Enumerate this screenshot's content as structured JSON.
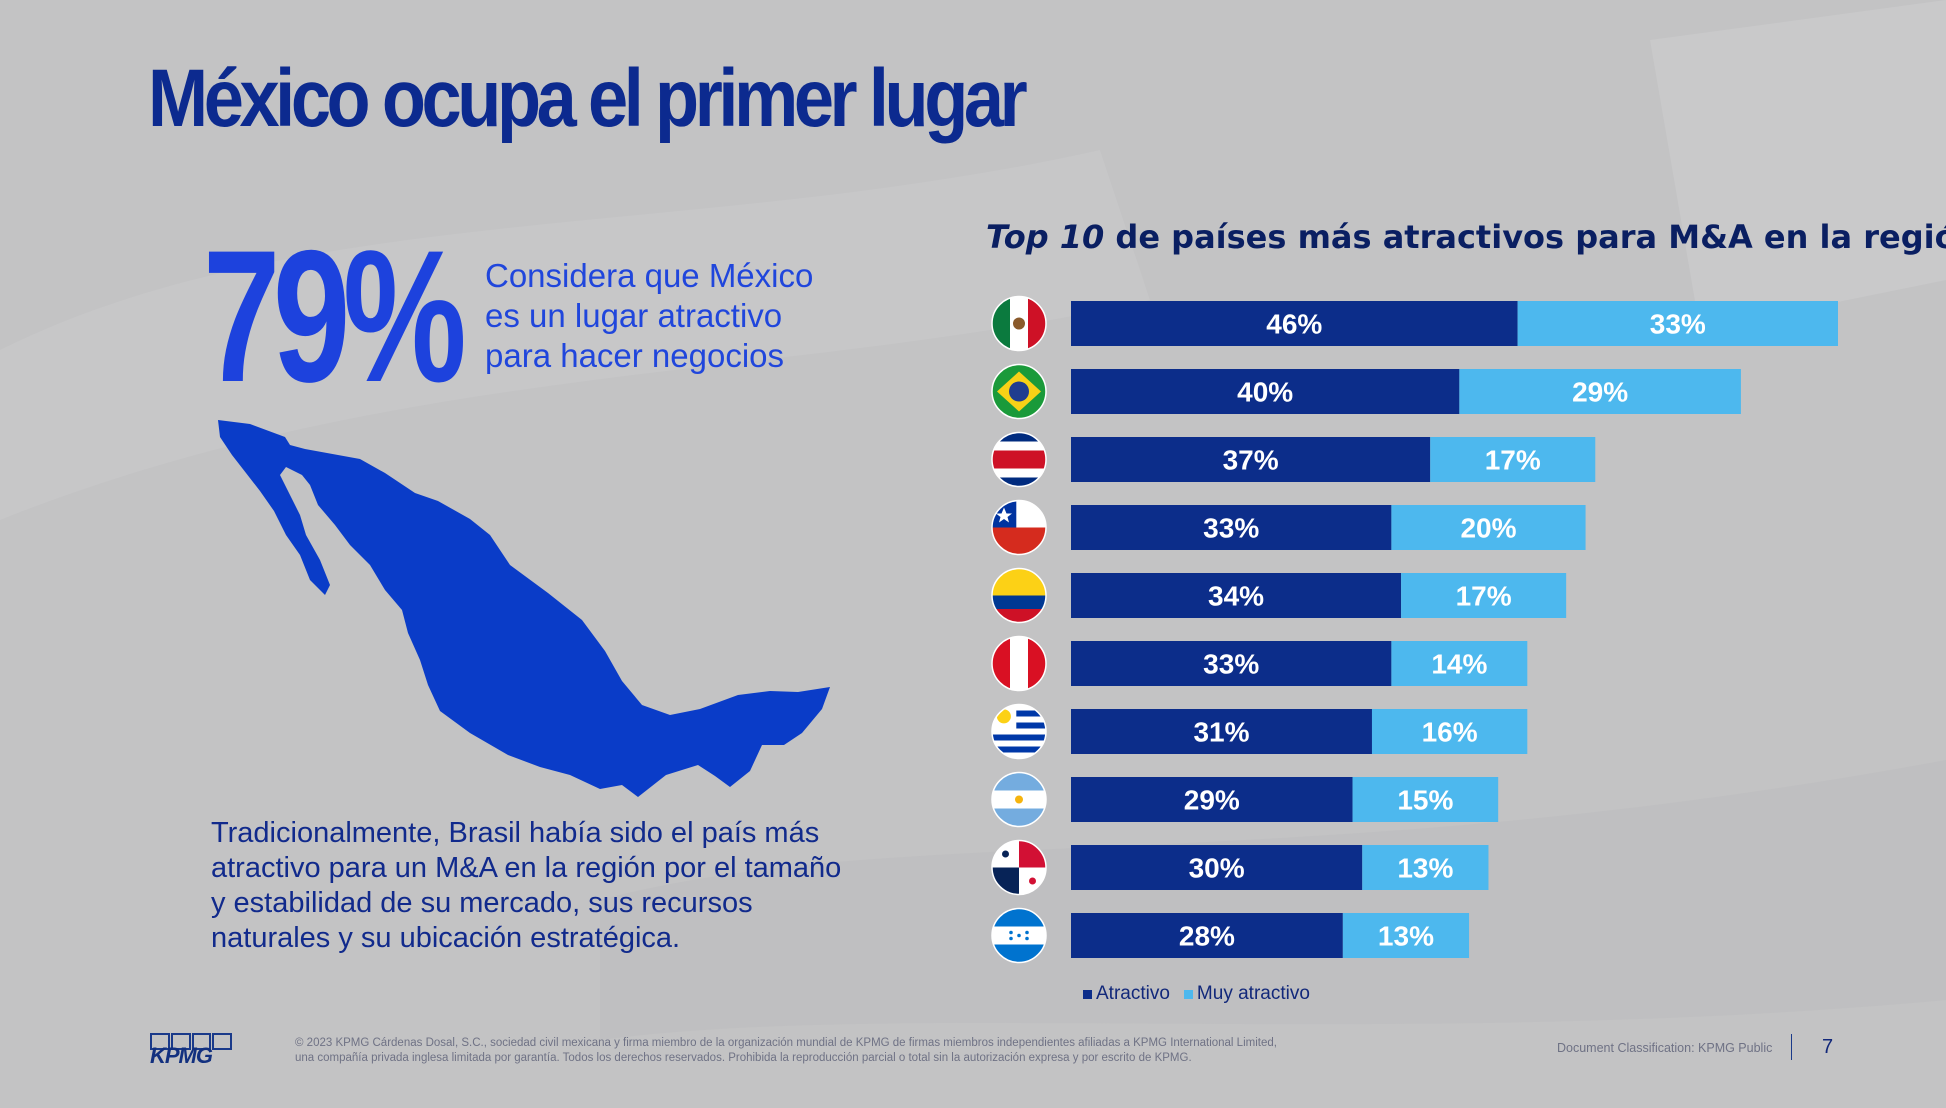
{
  "header": {
    "title": "México ocupa el primer lugar"
  },
  "stat": {
    "percent": "79%",
    "caption": [
      "Considera que México",
      "es un lugar atractivo",
      "para hacer negocios"
    ]
  },
  "body_text": [
    "Tradicionalmente, Brasil había sido el país más",
    "atractivo para un M&A en la región por el tamaño",
    "y estabilidad de su mercado, sus recursos",
    "naturales y su ubicación estratégica."
  ],
  "chart_data": {
    "type": "bar",
    "orientation": "horizontal",
    "stacked": true,
    "title_italic": "Top 10",
    "title_rest": " de países más atractivos para M&A en la región",
    "categories": [
      "México",
      "Brasil",
      "Costa Rica",
      "Chile",
      "Colombia",
      "Perú",
      "Uruguay",
      "Argentina",
      "Panamá",
      "Honduras"
    ],
    "category_icons": [
      "mexico-flag-icon",
      "brazil-flag-icon",
      "costa-rica-flag-icon",
      "chile-flag-icon",
      "colombia-flag-icon",
      "peru-flag-icon",
      "uruguay-flag-icon",
      "argentina-flag-icon",
      "panama-flag-icon",
      "honduras-flag-icon"
    ],
    "series": [
      {
        "name": "Atractivo",
        "color": "#0c2d8a",
        "values": [
          46,
          40,
          37,
          33,
          34,
          33,
          31,
          29,
          30,
          28
        ]
      },
      {
        "name": "Muy atractivo",
        "color": "#4db8ee",
        "values": [
          33,
          29,
          17,
          20,
          17,
          14,
          16,
          15,
          13,
          13
        ]
      }
    ],
    "xlim": [
      0,
      79
    ],
    "legend_position": "bottom-left",
    "value_label_suffix": "%"
  },
  "footer": {
    "logo_text": "KPMG",
    "copyright": [
      "© 2023 KPMG Cárdenas Dosal, S.C., sociedad civil mexicana y firma miembro de la organización mundial de KPMG de firmas miembros independientes afiliadas a KPMG International Limited,",
      "una compañía privada inglesa limitada por garantía. Todos los derechos reservados. Prohibida la reproducción parcial o total sin la autorización expresa y por escrito de KPMG."
    ],
    "classification": "Document Classification: KPMG Public",
    "page_number": "7"
  },
  "colors": {
    "title": "#0c2a8f",
    "accent_blue": "#1d42dd",
    "dark_bar": "#0c2d8a",
    "light_bar": "#4db8ee",
    "background": "#c3c3c4"
  }
}
